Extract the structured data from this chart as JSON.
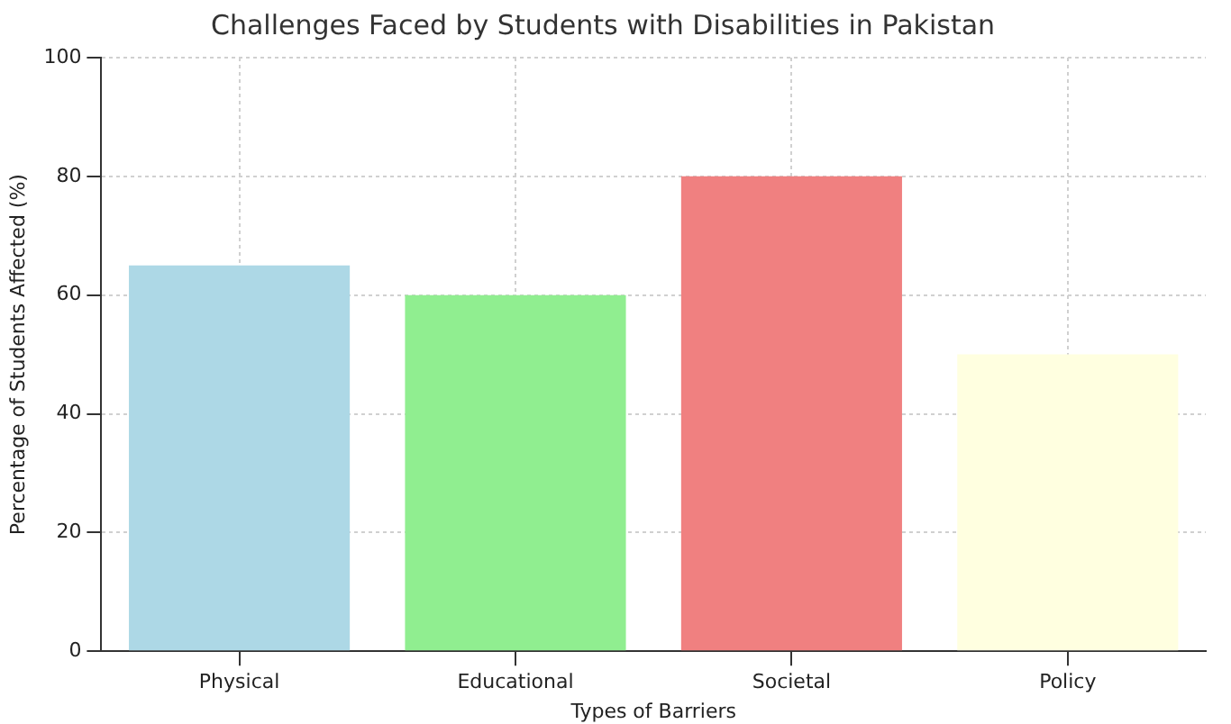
{
  "chart_data": {
    "type": "bar",
    "title": "Challenges Faced by Students with Disabilities in Pakistan",
    "xlabel": "Types of Barriers",
    "ylabel": "Percentage of Students Affected (%)",
    "categories": [
      "Physical",
      "Educational",
      "Societal",
      "Policy"
    ],
    "values": [
      65,
      60,
      80,
      50
    ],
    "colors": [
      "#add8e6",
      "#90ee90",
      "#f08080",
      "#ffffe0"
    ],
    "ylim": [
      0,
      100
    ],
    "yticks": [
      0,
      20,
      40,
      60,
      80,
      100
    ],
    "grid": true
  }
}
